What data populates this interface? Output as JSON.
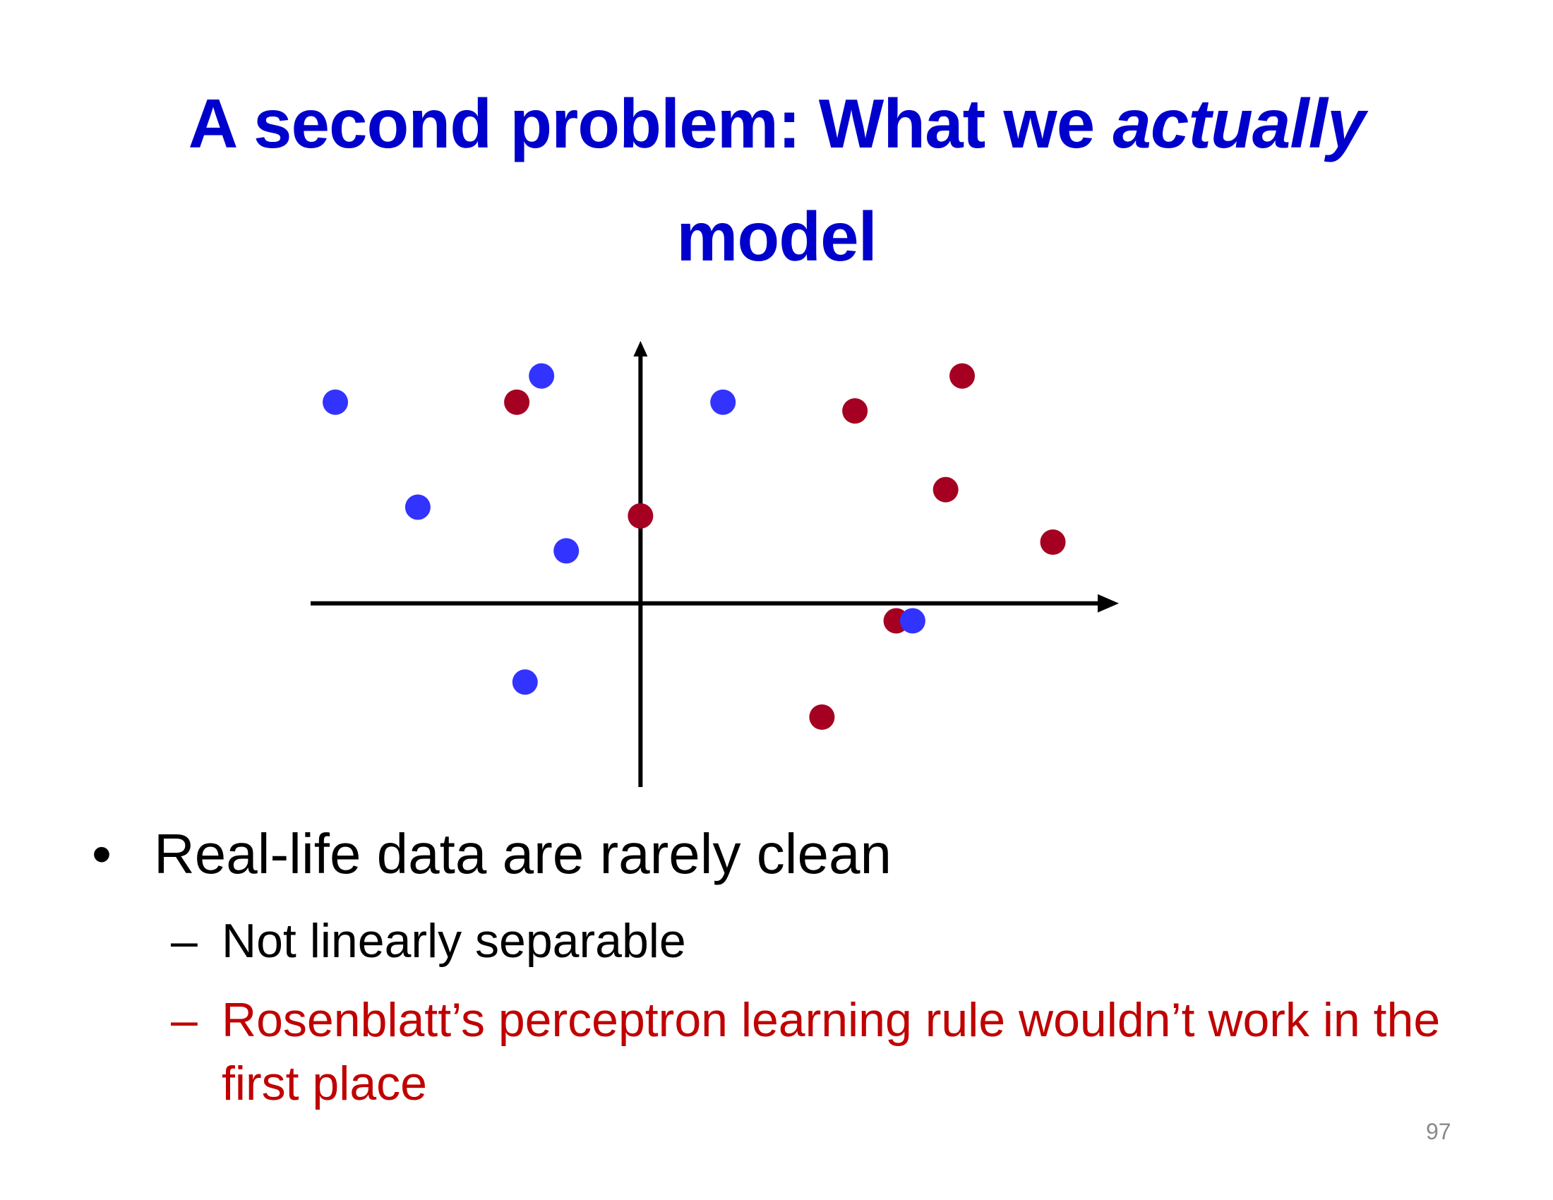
{
  "slide": {
    "title_part1": "A second problem: What we ",
    "title_emph": "actually",
    "title_part2": "model",
    "bullet_char": "•",
    "dash_char": "–",
    "bullet_main": "Real-life data are rarely clean",
    "sub_bullets": [
      "Not linearly separable",
      "Rosenblatt’s perceptron learning rule wouldn’t work in the first place"
    ],
    "page_number": "97"
  },
  "colors": {
    "title": "#0000cc",
    "class_blue": "#3333ff",
    "class_red": "#a50021",
    "highlight_text": "#c00000",
    "axes": "#000000"
  },
  "chart_data": {
    "type": "scatter",
    "series": [
      {
        "color": "#3333ff",
        "points": [
          [
            -3.7,
            2.3
          ],
          [
            -1.2,
            2.6
          ],
          [
            1.0,
            2.3
          ],
          [
            -2.7,
            1.1
          ],
          [
            -0.9,
            0.6
          ],
          [
            3.3,
            -0.2
          ],
          [
            -1.4,
            -0.9
          ]
        ]
      },
      {
        "color": "#a50021",
        "points": [
          [
            -1.5,
            2.3
          ],
          [
            3.9,
            2.6
          ],
          [
            2.6,
            2.2
          ],
          [
            3.7,
            1.3
          ],
          [
            0.0,
            1.0
          ],
          [
            5.0,
            0.7
          ],
          [
            3.1,
            -0.2
          ],
          [
            2.2,
            -1.3
          ]
        ]
      }
    ],
    "xlim": [
      -4.0,
      5.8
    ],
    "ylim": [
      -2.1,
      3.0
    ],
    "grid": false
  }
}
